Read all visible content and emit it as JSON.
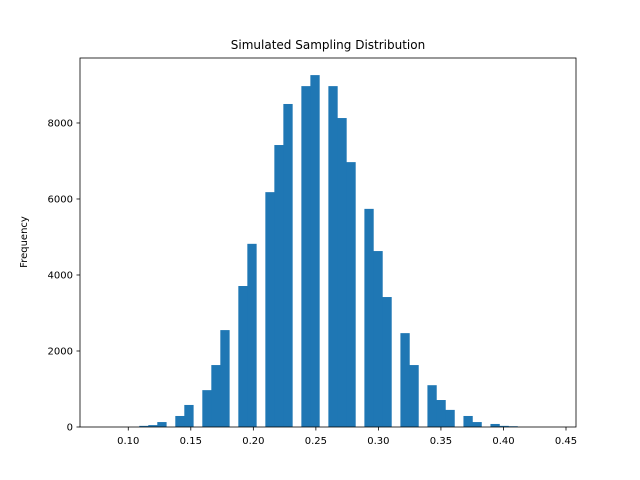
{
  "chart_data": {
    "type": "bar",
    "title": "Simulated Sampling Distribution",
    "xlabel": "",
    "ylabel": "Frequency",
    "bin_start": 0.08,
    "bin_width": 0.0072,
    "counts": [
      0,
      0,
      0,
      0,
      30,
      50,
      130,
      0,
      290,
      580,
      0,
      970,
      1630,
      2550,
      0,
      3710,
      4820,
      0,
      6180,
      7420,
      8500,
      0,
      8970,
      9260,
      0,
      8970,
      8130,
      6970,
      0,
      5740,
      4630,
      3420,
      0,
      2470,
      1630,
      0,
      1100,
      710,
      450,
      0,
      290,
      130,
      0,
      80,
      30,
      20,
      0,
      0,
      0,
      0
    ],
    "xlim": [
      0.0614,
      0.458
    ],
    "ylim": [
      0,
      9710
    ],
    "xticks": [
      0.1,
      0.15,
      0.2,
      0.25,
      0.3,
      0.35,
      0.4,
      0.45
    ],
    "xtick_labels": [
      "0.10",
      "0.15",
      "0.20",
      "0.25",
      "0.30",
      "0.35",
      "0.40",
      "0.45"
    ],
    "yticks": [
      0,
      2000,
      4000,
      6000,
      8000
    ],
    "ytick_labels": [
      "0",
      "2000",
      "4000",
      "6000",
      "8000"
    ],
    "bar_color": "#1f77b4",
    "grid": false
  }
}
